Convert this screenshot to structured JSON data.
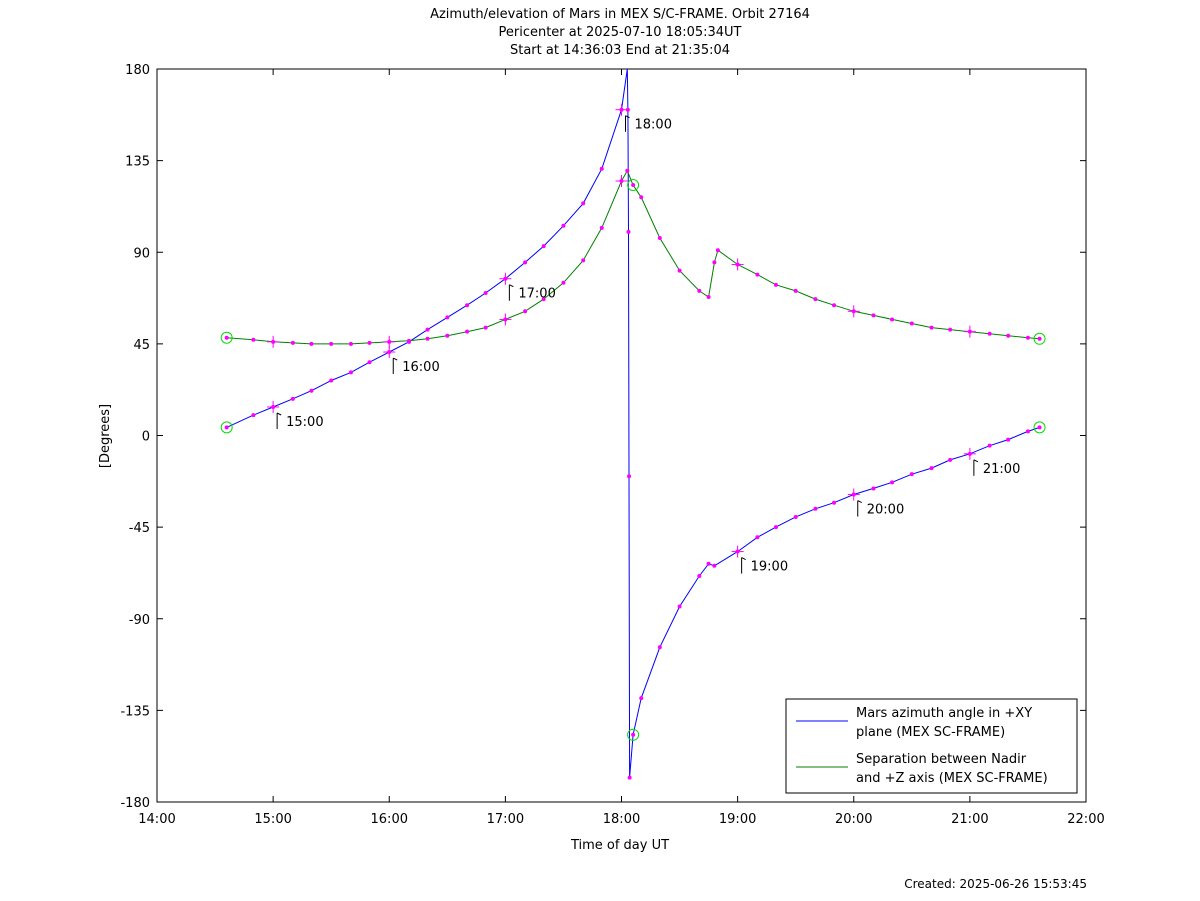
{
  "chart_data": {
    "type": "line",
    "title_lines": [
      "Azimuth/elevation of Mars in MEX S/C-FRAME.  Orbit 27164",
      "Pericenter at 2025-07-10 18:05:34UT",
      "Start at 14:36:03 End at 21:35:04"
    ],
    "xlabel": "Time of day UT",
    "ylabel": "[Degrees]",
    "xlim": [
      14.0,
      22.0
    ],
    "ylim": [
      -180,
      180
    ],
    "x_ticks": [
      {
        "v": 14,
        "label": "14:00"
      },
      {
        "v": 15,
        "label": "15:00"
      },
      {
        "v": 16,
        "label": "16:00"
      },
      {
        "v": 17,
        "label": "17:00"
      },
      {
        "v": 18,
        "label": "18:00"
      },
      {
        "v": 19,
        "label": "19:00"
      },
      {
        "v": 20,
        "label": "20:00"
      },
      {
        "v": 21,
        "label": "21:00"
      },
      {
        "v": 22,
        "label": "22:00"
      }
    ],
    "y_ticks": [
      {
        "v": 180,
        "label": "180"
      },
      {
        "v": 135,
        "label": "135"
      },
      {
        "v": 90,
        "label": "90"
      },
      {
        "v": 45,
        "label": "45"
      },
      {
        "v": 0,
        "label": "0"
      },
      {
        "v": -45,
        "label": "-45"
      },
      {
        "v": -90,
        "label": "-90"
      },
      {
        "v": -135,
        "label": "-135"
      },
      {
        "v": -180,
        "label": "-180"
      }
    ],
    "legend_position": "bottom-right",
    "series": [
      {
        "name": "Mars azimuth angle in +XY plane (MEX SC-FRAME)",
        "legend_lines": [
          "Mars azimuth angle in +XY",
          "plane (MEX SC-FRAME)"
        ],
        "color": "#0000ff",
        "x": [
          14.6,
          14.83,
          15.0,
          15.17,
          15.33,
          15.5,
          15.67,
          15.83,
          16.0,
          16.17,
          16.33,
          16.5,
          16.67,
          16.83,
          17.0,
          17.17,
          17.33,
          17.5,
          17.67,
          17.83,
          18.0,
          18.05,
          18.055,
          18.06,
          18.065,
          18.07,
          18.1,
          18.17,
          18.33,
          18.5,
          18.67,
          18.75,
          18.8,
          19.0,
          19.17,
          19.33,
          19.5,
          19.67,
          19.83,
          20.0,
          20.17,
          20.33,
          20.5,
          20.67,
          20.83,
          21.0,
          21.17,
          21.33,
          21.5,
          21.6
        ],
        "y": [
          4,
          10,
          14,
          18,
          22,
          27,
          31,
          36,
          41,
          46,
          52,
          58,
          64,
          70,
          77,
          85,
          93,
          103,
          114,
          131,
          160,
          180,
          160,
          100,
          -20,
          -168,
          -147,
          -129,
          -104,
          -84,
          -69,
          -63,
          -64,
          -57,
          -50,
          -45,
          -40,
          -36,
          -33,
          -29,
          -26,
          -23,
          -19,
          -16,
          -12,
          -9,
          -5,
          -2,
          2,
          4
        ],
        "markers_x": [
          15.0,
          16.0,
          17.0,
          18.0,
          19.0,
          20.0,
          21.0
        ],
        "markers_y": [
          14,
          41,
          77,
          160,
          -57,
          -29,
          -9
        ]
      },
      {
        "name": "Separation between Nadir and +Z axis (MEX SC-FRAME)",
        "legend_lines": [
          "Separation between Nadir",
          "and +Z axis (MEX SC-FRAME)"
        ],
        "color": "#008000",
        "x": [
          14.6,
          14.83,
          15.0,
          15.17,
          15.33,
          15.5,
          15.67,
          15.83,
          16.0,
          16.17,
          16.33,
          16.5,
          16.67,
          16.83,
          17.0,
          17.17,
          17.33,
          17.5,
          17.67,
          17.83,
          18.0,
          18.05,
          18.1,
          18.17,
          18.33,
          18.5,
          18.67,
          18.75,
          18.8,
          18.83,
          19.0,
          19.17,
          19.33,
          19.5,
          19.67,
          19.83,
          20.0,
          20.17,
          20.33,
          20.5,
          20.67,
          20.83,
          21.0,
          21.17,
          21.33,
          21.5,
          21.6
        ],
        "y": [
          48,
          47,
          46,
          45.5,
          45,
          45,
          45,
          45.5,
          46,
          46.5,
          47.5,
          49,
          51,
          53,
          57,
          61,
          67,
          75,
          86,
          102,
          125,
          130,
          123,
          117,
          97,
          81,
          71,
          68,
          85,
          91,
          84,
          79,
          74,
          71,
          67,
          64,
          61,
          59,
          57,
          55,
          53,
          52,
          51,
          50,
          49,
          48,
          47.5
        ],
        "markers_x": [
          15.0,
          16.0,
          17.0,
          18.0,
          19.0,
          20.0,
          21.0
        ],
        "markers_y": [
          46,
          46,
          57,
          125,
          84,
          61,
          51
        ]
      }
    ],
    "time_annotations": [
      {
        "label": "15:00",
        "x": 15.0,
        "y": 14
      },
      {
        "label": "16:00",
        "x": 16.0,
        "y": 41
      },
      {
        "label": "17:00",
        "x": 17.0,
        "y": 77
      },
      {
        "label": "18:00",
        "x": 18.0,
        "y": 160
      },
      {
        "label": "19:00",
        "x": 19.0,
        "y": -57
      },
      {
        "label": "20:00",
        "x": 20.0,
        "y": -29
      },
      {
        "label": "21:00",
        "x": 21.0,
        "y": -9
      }
    ],
    "circle_markers": [
      {
        "x": 14.6,
        "y": 48
      },
      {
        "x": 14.6,
        "y": 4
      },
      {
        "x": 18.1,
        "y": 123
      },
      {
        "x": 18.1,
        "y": -147
      },
      {
        "x": 21.6,
        "y": 47.5
      },
      {
        "x": 21.6,
        "y": 4
      }
    ]
  },
  "footer": {
    "created": "Created: 2025-06-26 15:53:45"
  }
}
